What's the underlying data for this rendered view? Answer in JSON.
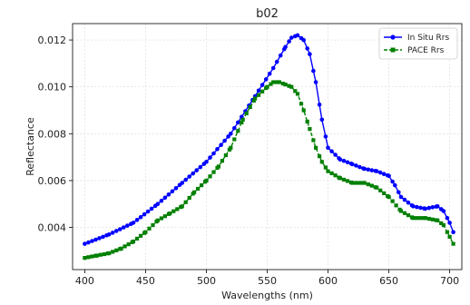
{
  "chart_data": {
    "type": "line",
    "title": "b02",
    "xlabel": "Wavelengths (nm)",
    "ylabel": "Reflectance",
    "xlim": [
      390,
      710
    ],
    "ylim": [
      0.0022,
      0.0127
    ],
    "xticks": [
      400,
      450,
      500,
      550,
      600,
      650,
      700
    ],
    "yticks": [
      0.004,
      0.006,
      0.008,
      0.01,
      0.012
    ],
    "ytick_labels": [
      "0.004",
      "0.006",
      "0.008",
      "0.010",
      "0.012"
    ],
    "grid": true,
    "legend_position": "top-right",
    "series": [
      {
        "name": "In Situ Rrs",
        "color": "#0000ff",
        "marker": "circle",
        "line_style": "solid",
        "x": [
          400,
          420,
          440,
          460,
          480,
          500,
          520,
          540,
          555,
          565,
          570,
          575,
          580,
          585,
          590,
          595,
          600,
          610,
          620,
          630,
          640,
          650,
          655,
          660,
          670,
          680,
          690,
          695,
          700,
          703
        ],
        "y": [
          0.0033,
          0.0037,
          0.0042,
          0.005,
          0.0059,
          0.0068,
          0.008,
          0.0096,
          0.0108,
          0.0117,
          0.0121,
          0.0122,
          0.012,
          0.0114,
          0.0102,
          0.0086,
          0.0074,
          0.0069,
          0.0067,
          0.0065,
          0.0064,
          0.0062,
          0.0058,
          0.0053,
          0.0049,
          0.0048,
          0.0049,
          0.0047,
          0.0042,
          0.0038
        ]
      },
      {
        "name": "PACE Rrs",
        "color": "#008000",
        "marker": "square",
        "line_style": "dashed",
        "x": [
          400,
          410,
          420,
          430,
          440,
          450,
          460,
          470,
          480,
          490,
          500,
          510,
          520,
          530,
          540,
          550,
          555,
          560,
          565,
          570,
          575,
          580,
          585,
          590,
          595,
          600,
          610,
          620,
          630,
          640,
          650,
          660,
          670,
          680,
          690,
          695,
          700,
          703
        ],
        "y": [
          0.0027,
          0.0028,
          0.0029,
          0.0031,
          0.0034,
          0.0038,
          0.0043,
          0.0046,
          0.0049,
          0.0055,
          0.006,
          0.0066,
          0.0074,
          0.0086,
          0.0095,
          0.01,
          0.0102,
          0.0102,
          0.0101,
          0.01,
          0.0097,
          0.009,
          0.0082,
          0.0074,
          0.0068,
          0.0064,
          0.0061,
          0.0059,
          0.0059,
          0.0057,
          0.0053,
          0.0047,
          0.0044,
          0.0044,
          0.0043,
          0.0041,
          0.0036,
          0.0033
        ]
      }
    ]
  }
}
